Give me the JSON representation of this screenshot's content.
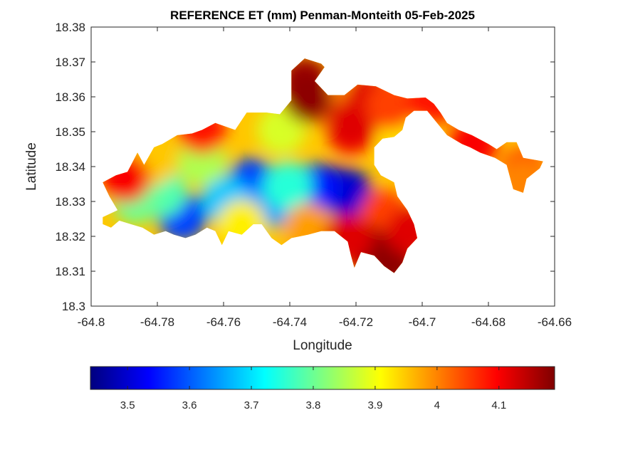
{
  "chart_data": {
    "type": "heatmap",
    "title": "REFERENCE ET (mm) Penman-Monteith 05-Feb-2025",
    "xlabel": "Longitude",
    "ylabel": "Latitude",
    "xlim": [
      -64.8,
      -64.66
    ],
    "ylim": [
      18.3,
      18.38
    ],
    "xticks": [
      "-64.8",
      "-64.78",
      "-64.76",
      "-64.74",
      "-64.72",
      "-64.7",
      "-64.68",
      "-64.66"
    ],
    "yticks": [
      "18.3",
      "18.31",
      "18.32",
      "18.33",
      "18.34",
      "18.35",
      "18.36",
      "18.37",
      "18.38"
    ],
    "colorbar": {
      "colormap": "jet",
      "orientation": "horizontal",
      "placement": "below",
      "range": [
        3.44,
        4.19
      ],
      "ticks": [
        "3.5",
        "3.6",
        "3.7",
        "3.8",
        "3.9",
        "4",
        "4.1"
      ]
    },
    "grid": false,
    "land_outline": [
      [
        -64.7965,
        18.3355
      ],
      [
        -64.7925,
        18.3375
      ],
      [
        -64.789,
        18.3385
      ],
      [
        -64.786,
        18.344
      ],
      [
        -64.784,
        18.3405
      ],
      [
        -64.781,
        18.3455
      ],
      [
        -64.7785,
        18.3465
      ],
      [
        -64.774,
        18.349
      ],
      [
        -64.7695,
        18.3495
      ],
      [
        -64.7665,
        18.3505
      ],
      [
        -64.7625,
        18.3525
      ],
      [
        -64.7565,
        18.3505
      ],
      [
        -64.753,
        18.3555
      ],
      [
        -64.747,
        18.3555
      ],
      [
        -64.743,
        18.355
      ],
      [
        -64.7395,
        18.359
      ],
      [
        -64.7395,
        18.3675
      ],
      [
        -64.7355,
        18.371
      ],
      [
        -64.7305,
        18.3695
      ],
      [
        -64.7295,
        18.3685
      ],
      [
        -64.7325,
        18.3645
      ],
      [
        -64.7285,
        18.3605
      ],
      [
        -64.7235,
        18.3605
      ],
      [
        -64.7195,
        18.3635
      ],
      [
        -64.714,
        18.363
      ],
      [
        -64.7085,
        18.3605
      ],
      [
        -64.7045,
        18.3595
      ],
      [
        -64.699,
        18.3598
      ],
      [
        -64.6965,
        18.358
      ],
      [
        -64.6945,
        18.3555
      ],
      [
        -64.6925,
        18.3525
      ],
      [
        -64.689,
        18.3505
      ],
      [
        -64.685,
        18.349
      ],
      [
        -64.68,
        18.3465
      ],
      [
        -64.6775,
        18.345
      ],
      [
        -64.6745,
        18.347
      ],
      [
        -64.6715,
        18.347
      ],
      [
        -64.6695,
        18.3425
      ],
      [
        -64.6635,
        18.3415
      ],
      [
        -64.6645,
        18.3395
      ],
      [
        -64.6685,
        18.3365
      ],
      [
        -64.6695,
        18.3325
      ],
      [
        -64.6725,
        18.3335
      ],
      [
        -64.6745,
        18.3405
      ],
      [
        -64.678,
        18.3425
      ],
      [
        -64.6825,
        18.344
      ],
      [
        -64.6855,
        18.3455
      ],
      [
        -64.688,
        18.3465
      ],
      [
        -64.6925,
        18.349
      ],
      [
        -64.6955,
        18.3525
      ],
      [
        -64.6985,
        18.356
      ],
      [
        -64.7025,
        18.356
      ],
      [
        -64.705,
        18.354
      ],
      [
        -64.706,
        18.3505
      ],
      [
        -64.7085,
        18.3485
      ],
      [
        -64.712,
        18.348
      ],
      [
        -64.7145,
        18.3455
      ],
      [
        -64.7145,
        18.3405
      ],
      [
        -64.7125,
        18.3375
      ],
      [
        -64.7085,
        18.3355
      ],
      [
        -64.7075,
        18.3315
      ],
      [
        -64.7045,
        18.3275
      ],
      [
        -64.7025,
        18.3235
      ],
      [
        -64.7015,
        18.3195
      ],
      [
        -64.7045,
        18.3165
      ],
      [
        -64.706,
        18.3125
      ],
      [
        -64.7085,
        18.3095
      ],
      [
        -64.7115,
        18.3115
      ],
      [
        -64.7145,
        18.3145
      ],
      [
        -64.7185,
        18.3155
      ],
      [
        -64.7205,
        18.311
      ],
      [
        -64.7215,
        18.3145
      ],
      [
        -64.7225,
        18.3185
      ],
      [
        -64.7265,
        18.3215
      ],
      [
        -64.7305,
        18.3215
      ],
      [
        -64.7345,
        18.3205
      ],
      [
        -64.7395,
        18.3195
      ],
      [
        -64.7425,
        18.3175
      ],
      [
        -64.7455,
        18.3195
      ],
      [
        -64.7485,
        18.3235
      ],
      [
        -64.751,
        18.3235
      ],
      [
        -64.7545,
        18.3205
      ],
      [
        -64.7585,
        18.3215
      ],
      [
        -64.7605,
        18.3175
      ],
      [
        -64.7625,
        18.3215
      ],
      [
        -64.765,
        18.3225
      ],
      [
        -64.7685,
        18.3205
      ],
      [
        -64.7715,
        18.3195
      ],
      [
        -64.775,
        18.3205
      ],
      [
        -64.7775,
        18.3215
      ],
      [
        -64.781,
        18.3205
      ],
      [
        -64.7845,
        18.3225
      ],
      [
        -64.788,
        18.3235
      ],
      [
        -64.7915,
        18.3245
      ],
      [
        -64.794,
        18.3225
      ],
      [
        -64.7965,
        18.3235
      ],
      [
        -64.7965,
        18.3255
      ],
      [
        -64.792,
        18.3275
      ],
      [
        -64.7945,
        18.3315
      ],
      [
        -64.7965,
        18.3355
      ]
    ],
    "et_field": [
      {
        "lon": -64.728,
        "lat": 18.3335,
        "value": 3.46
      },
      {
        "lon": -64.7225,
        "lat": 18.3325,
        "value": 3.5
      },
      {
        "lon": -64.7325,
        "lat": 18.334,
        "value": 3.55
      },
      {
        "lon": -64.7515,
        "lat": 18.3355,
        "value": 3.58
      },
      {
        "lon": -64.7725,
        "lat": 18.3255,
        "value": 3.58
      },
      {
        "lon": -64.7455,
        "lat": 18.3295,
        "value": 3.65
      },
      {
        "lon": -64.7595,
        "lat": 18.3305,
        "value": 3.68
      },
      {
        "lon": -64.7405,
        "lat": 18.3345,
        "value": 3.75
      },
      {
        "lon": -64.7785,
        "lat": 18.3325,
        "value": 3.78
      },
      {
        "lon": -64.7865,
        "lat": 18.3305,
        "value": 3.8
      },
      {
        "lon": -64.7665,
        "lat": 18.3415,
        "value": 3.85
      },
      {
        "lon": -64.7425,
        "lat": 18.3505,
        "value": 3.88
      },
      {
        "lon": -64.7545,
        "lat": 18.3235,
        "value": 3.92
      },
      {
        "lon": -64.7055,
        "lat": 18.3495,
        "value": 3.93
      },
      {
        "lon": -64.7815,
        "lat": 18.3415,
        "value": 3.95
      },
      {
        "lon": -64.7345,
        "lat": 18.3225,
        "value": 3.98
      },
      {
        "lon": -64.7115,
        "lat": 18.3265,
        "value": 4.05
      },
      {
        "lon": -64.7265,
        "lat": 18.3575,
        "value": 4.0
      },
      {
        "lon": -64.7215,
        "lat": 18.3505,
        "value": 4.1
      },
      {
        "lon": -64.7215,
        "lat": 18.3525,
        "value": 4.12
      },
      {
        "lon": -64.7895,
        "lat": 18.3365,
        "value": 4.1
      },
      {
        "lon": -64.7155,
        "lat": 18.3595,
        "value": 4.12
      },
      {
        "lon": -64.7665,
        "lat": 18.3505,
        "value": 4.08
      },
      {
        "lon": -64.7095,
        "lat": 18.3575,
        "value": 4.05
      },
      {
        "lon": -64.6975,
        "lat": 18.3585,
        "value": 4.08
      },
      {
        "lon": -64.6845,
        "lat": 18.3465,
        "value": 4.1
      },
      {
        "lon": -64.6695,
        "lat": 18.3385,
        "value": 4.06
      },
      {
        "lon": -64.6695,
        "lat": 18.3355,
        "value": 4.0
      },
      {
        "lon": -64.7355,
        "lat": 18.3645,
        "value": 4.17
      },
      {
        "lon": -64.7345,
        "lat": 18.3595,
        "value": 4.18
      },
      {
        "lon": -64.7165,
        "lat": 18.3165,
        "value": 4.16
      },
      {
        "lon": -64.7095,
        "lat": 18.3125,
        "value": 4.18
      },
      {
        "lon": -64.7225,
        "lat": 18.3195,
        "value": 4.12
      },
      {
        "lon": -64.7035,
        "lat": 18.3215,
        "value": 4.12
      }
    ]
  }
}
